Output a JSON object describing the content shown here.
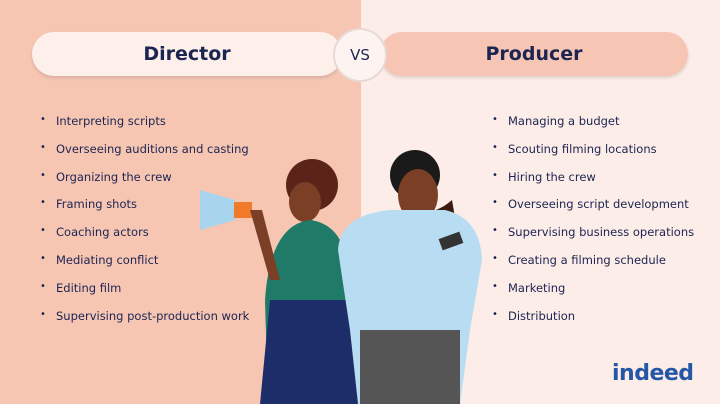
{
  "director": {
    "title": "Director",
    "items": [
      "Interpreting scripts",
      "Overseeing auditions and casting",
      "Organizing the crew",
      "Framing shots",
      "Coaching actors",
      "Mediating conflict",
      "Editing film",
      "Supervising post-production work"
    ]
  },
  "vs": "VS",
  "producer": {
    "title": "Producer",
    "items": [
      "Managing a budget",
      "Scouting filming locations",
      "Hiring the crew",
      "Overseeing script development",
      "Supervising business operations",
      "Creating a filming schedule",
      "Marketing",
      "Distribution"
    ]
  },
  "logo": "indeed",
  "colors": {
    "left_bg": "#f6c6b3",
    "right_bg": "#fcede8",
    "title_text": "#1c2452",
    "brand": "#2557a7"
  }
}
